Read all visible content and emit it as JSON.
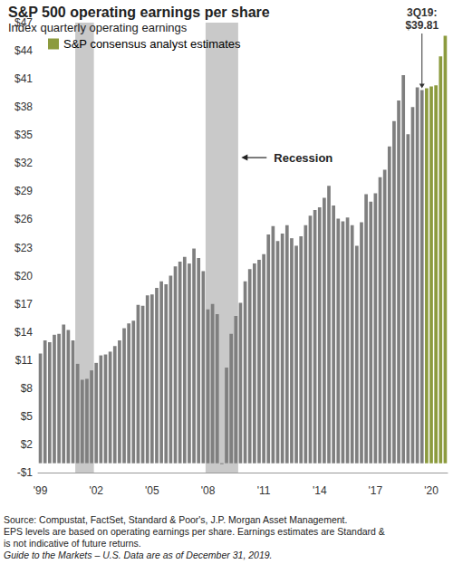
{
  "chart_data": {
    "type": "bar",
    "title": "S&P 500 operating earnings per share",
    "subtitle": "Index quarterly operating earnings",
    "categories": [
      "'99",
      null,
      null,
      null,
      null,
      null,
      null,
      null,
      null,
      null,
      null,
      null,
      "'02",
      null,
      null,
      null,
      null,
      null,
      null,
      null,
      null,
      null,
      null,
      null,
      "'05",
      null,
      null,
      null,
      null,
      null,
      null,
      null,
      null,
      null,
      null,
      null,
      "'08",
      null,
      null,
      null,
      null,
      null,
      null,
      null,
      null,
      null,
      null,
      null,
      "'11",
      null,
      null,
      null,
      null,
      null,
      null,
      null,
      null,
      null,
      null,
      null,
      "'14",
      null,
      null,
      null,
      null,
      null,
      null,
      null,
      null,
      null,
      null,
      null,
      "'17",
      null,
      null,
      null,
      null,
      null,
      null,
      null,
      null,
      null,
      null,
      null,
      "'20",
      null,
      null,
      null
    ],
    "series": [
      {
        "color": "#7f7f7f",
        "values": [
          11.7,
          13.1,
          12.9,
          13.7,
          13.8,
          14.8,
          14.2,
          13.1,
          10.6,
          8.9,
          9.0,
          9.9,
          10.7,
          11.5,
          11.6,
          11.9,
          12.5,
          13.1,
          14.4,
          14.9,
          15.2,
          16.9,
          16.8,
          17.9,
          18.0,
          18.7,
          19.4,
          19.1,
          20.0,
          21.0,
          21.5,
          22.0,
          21.3,
          22.9,
          21.9,
          20.5,
          16.4,
          17.0,
          15.9,
          -0.1,
          10.2,
          13.8,
          15.7,
          17.1,
          19.4,
          20.7,
          21.3,
          21.7,
          22.3,
          24.4,
          25.3,
          23.7,
          24.5,
          25.4,
          24.0,
          23.2,
          24.2,
          25.4,
          26.4,
          27.0,
          27.3,
          28.3,
          29.6,
          27.5,
          26.1,
          25.8,
          26.2,
          25.4,
          23.2,
          25.7,
          28.7,
          27.9,
          28.8,
          30.5,
          31.3,
          33.8,
          36.5,
          38.7,
          41.4,
          35.1,
          38.0,
          40.1,
          39.81,
          null,
          null,
          null,
          null,
          null
        ]
      },
      {
        "name": "S&P consensus analyst estimates",
        "color": "#8c9b3e",
        "values": [
          null,
          null,
          null,
          null,
          null,
          null,
          null,
          null,
          null,
          null,
          null,
          null,
          null,
          null,
          null,
          null,
          null,
          null,
          null,
          null,
          null,
          null,
          null,
          null,
          null,
          null,
          null,
          null,
          null,
          null,
          null,
          null,
          null,
          null,
          null,
          null,
          null,
          null,
          null,
          null,
          null,
          null,
          null,
          null,
          null,
          null,
          null,
          null,
          null,
          null,
          null,
          null,
          null,
          null,
          null,
          null,
          null,
          null,
          null,
          null,
          null,
          null,
          null,
          null,
          null,
          null,
          null,
          null,
          null,
          null,
          null,
          null,
          null,
          null,
          null,
          null,
          null,
          null,
          null,
          null,
          null,
          null,
          null,
          40.0,
          40.2,
          40.3,
          43.4,
          45.6
        ]
      }
    ],
    "ylim": [
      -1,
      47
    ],
    "yticks": [
      {
        "value": -1,
        "label": "-$1"
      },
      {
        "value": 2,
        "label": "$2"
      },
      {
        "value": 5,
        "label": "$5"
      },
      {
        "value": 8,
        "label": "$8"
      },
      {
        "value": 11,
        "label": "$11"
      },
      {
        "value": 14,
        "label": "$14"
      },
      {
        "value": 17,
        "label": "$17"
      },
      {
        "value": 20,
        "label": "$20"
      },
      {
        "value": 23,
        "label": "$23"
      },
      {
        "value": 26,
        "label": "$26"
      },
      {
        "value": 29,
        "label": "$29"
      },
      {
        "value": 32,
        "label": "$32"
      },
      {
        "value": 35,
        "label": "$35"
      },
      {
        "value": 38,
        "label": "$38"
      },
      {
        "value": 41,
        "label": "$41"
      },
      {
        "value": 44,
        "label": "$44"
      },
      {
        "value": 47,
        "label": "$47"
      }
    ],
    "grid": false,
    "legend": "upper left",
    "recessions": [
      [
        8,
        11
      ],
      [
        36,
        42
      ]
    ],
    "annotations": [
      {
        "text": "3Q19:\n$39.81",
        "category_index": 82
      },
      {
        "text": "Recession",
        "recession": 1
      }
    ],
    "footnotes": [
      "Source: Compustat, FactSet, Standard & Poor's, J.P. Morgan Asset Management.",
      "EPS levels are based on operating earnings per share. Earnings estimates are Standard &",
      "is not indicative of future returns.",
      "Guide to the Markets – U.S. Data are as of December 31, 2019."
    ]
  }
}
